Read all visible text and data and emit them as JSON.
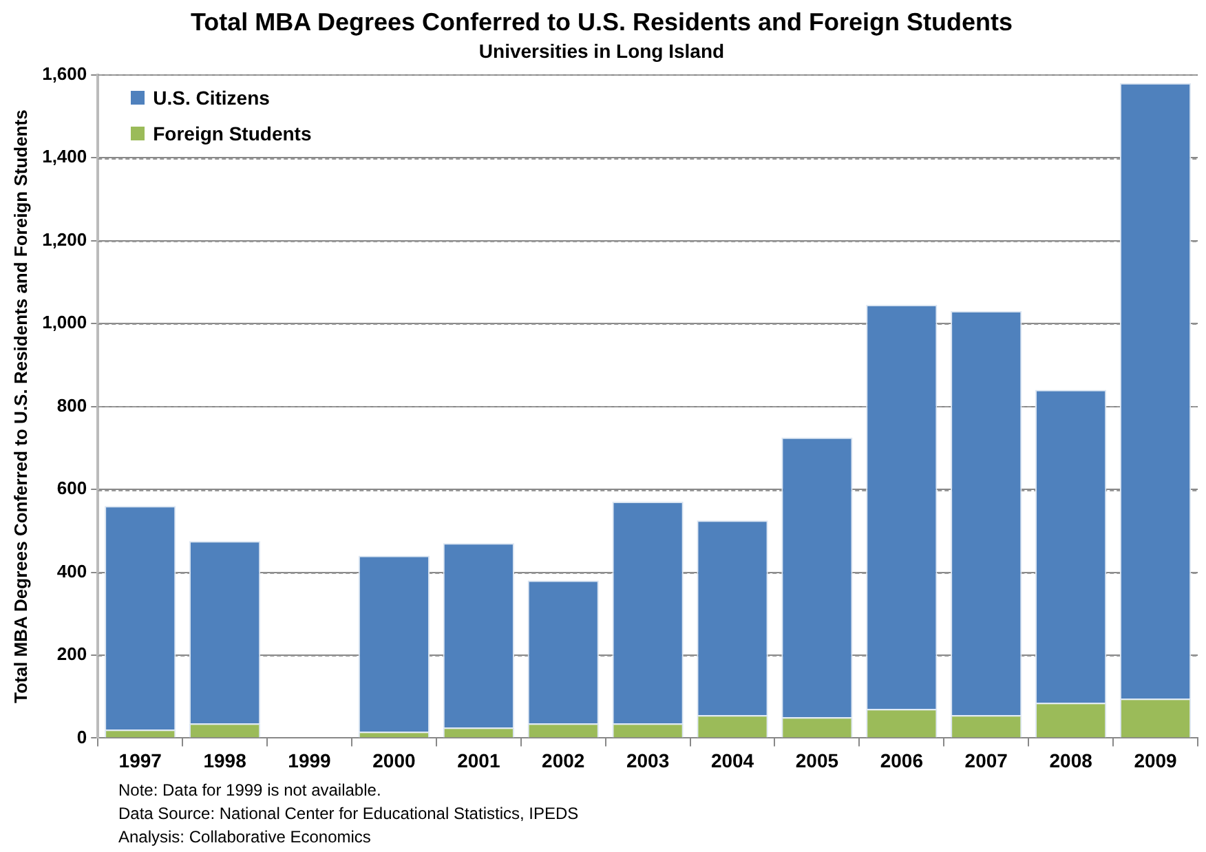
{
  "chart_data": {
    "type": "bar",
    "title": "Total MBA Degrees Conferred to U.S. Residents and Foreign Students",
    "subtitle": "Universities in Long Island",
    "ylabel": "Total MBA Degrees Conferred to U.S. Residents and Foreign Students",
    "categories": [
      "1997",
      "1998",
      "1999",
      "2000",
      "2001",
      "2002",
      "2003",
      "2004",
      "2005",
      "2006",
      "2007",
      "2008",
      "2009"
    ],
    "stacked": true,
    "series": [
      {
        "name": "Foreign Students",
        "color": "#9bbb59",
        "values": [
          20,
          35,
          null,
          15,
          25,
          35,
          35,
          55,
          50,
          70,
          55,
          85,
          95
        ]
      },
      {
        "name": "U.S. Citizens",
        "color": "#4f81bd",
        "values": [
          540,
          440,
          null,
          425,
          445,
          345,
          535,
          470,
          675,
          975,
          975,
          755,
          1485
        ]
      }
    ],
    "ylim": [
      0,
      1600
    ],
    "yticks": [
      {
        "value": 0,
        "label": "0"
      },
      {
        "value": 200,
        "label": "200"
      },
      {
        "value": 400,
        "label": "400"
      },
      {
        "value": 600,
        "label": "600"
      },
      {
        "value": 800,
        "label": "800"
      },
      {
        "value": 1000,
        "label": "1,000"
      },
      {
        "value": 1200,
        "label": "1,200"
      },
      {
        "value": 1400,
        "label": "1,400"
      },
      {
        "value": 1600,
        "label": "1,600"
      }
    ],
    "grid": "y",
    "legend": "top left",
    "annotations": [
      "Note:  Data for 1999 is not available.",
      "Data Source: National Center for Educational Statistics, IPEDS",
      "Analysis: Collaborative Economics"
    ]
  }
}
